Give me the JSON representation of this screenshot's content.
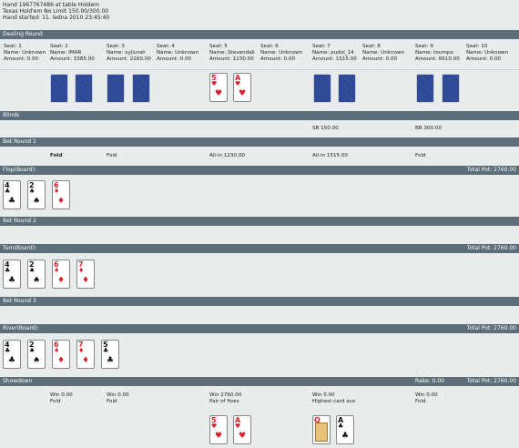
{
  "header": {
    "line1": "Hand 1967767486 at table Holdem",
    "line2": "Texas Hold'em No Limit 150.00/300.00",
    "line3": "Hand started: 11. ledna 2010 23:45:40"
  },
  "sections": {
    "dealing": "Dealing Round",
    "blinds": "Blinds",
    "bet1": "Bet Round 1",
    "flop": "Flop(Board):",
    "flop_pot": "Total Pot: 2760.00",
    "bet2": "Bet Round 2",
    "turn": "Turn(Board):",
    "turn_pot": "Total Pot: 2760.00",
    "bet3": "Bet Round 3",
    "river": "River(Board):",
    "river_pot": "Total Pot: 2760.00",
    "showdown": "Showdown",
    "rake": "Rake: 0.00",
    "showdown_pot": "Total Pot: 2760.00"
  },
  "seats": [
    {
      "seat": "Seat: 1",
      "name": "Name: Unknown",
      "amount": "Amount: 0.00"
    },
    {
      "seat": "Seat: 2",
      "name": "Name: IMAR",
      "amount": "Amount: 3385.00"
    },
    {
      "seat": "Seat: 3",
      "name": "Name: xyjlurah",
      "amount": "Amount: 2260.00"
    },
    {
      "seat": "Seat: 4",
      "name": "Name: Unknown",
      "amount": "Amount: 0.00"
    },
    {
      "seat": "Seat: 5",
      "name": "Name: Stevendali",
      "amount": "Amount: 1230.00"
    },
    {
      "seat": "Seat: 6",
      "name": "Name: Unknown",
      "amount": "Amount: 0.00"
    },
    {
      "seat": "Seat: 7",
      "name": "Name: pudol_14",
      "amount": "Amount: 1515.00"
    },
    {
      "seat": "Seat: 8",
      "name": "Name: Unknown",
      "amount": "Amount: 0.00"
    },
    {
      "seat": "Seat: 9",
      "name": "Name: toumpo",
      "amount": "Amount: 6610.00"
    },
    {
      "seat": "Seat: 10",
      "name": "Name: Unknown",
      "amount": "Amount: 0.00"
    }
  ],
  "blinds": {
    "sb": "SB 150.00",
    "bb": "BB 300.00"
  },
  "bet1_actions": {
    "seat2": "Fold",
    "seat3": "Fold",
    "seat5": "All-in 1230.00",
    "seat7": "All-in 1515.00",
    "seat9": "Fold"
  },
  "hole_cards": {
    "seat5": [
      {
        "rank": "5",
        "suit": "♥",
        "color": "#d8232a"
      },
      {
        "rank": "A",
        "suit": "♥",
        "color": "#d8232a"
      }
    ]
  },
  "board": {
    "flop": [
      {
        "rank": "4",
        "suit": "♣",
        "color": "#111111"
      },
      {
        "rank": "2",
        "suit": "♠",
        "color": "#111111"
      },
      {
        "rank": "6",
        "suit": "♦",
        "color": "#d8232a"
      }
    ],
    "turn": {
      "rank": "7",
      "suit": "♦",
      "color": "#d8232a"
    },
    "river": {
      "rank": "5",
      "suit": "♣",
      "color": "#111111"
    }
  },
  "showdown": {
    "seat2": {
      "win": "Win 0.00",
      "desc": "Fold"
    },
    "seat3": {
      "win": "Win 0.00",
      "desc": "Fold"
    },
    "seat5": {
      "win": "Win 2760.00",
      "desc": "Pair of fives"
    },
    "seat7": {
      "win": "Win 0.00",
      "desc": "Highest card ace"
    },
    "seat9": {
      "win": "Win 0.00",
      "desc": "Fold"
    },
    "seat7_cards": [
      {
        "rank": "Q",
        "suit": "♦",
        "color": "#d8232a"
      },
      {
        "rank": "A",
        "suit": "♣",
        "color": "#111111"
      }
    ]
  },
  "colors": {
    "bar": "#5b6e7a",
    "background": "#e9ecec",
    "card_back": "#2e4a93"
  }
}
